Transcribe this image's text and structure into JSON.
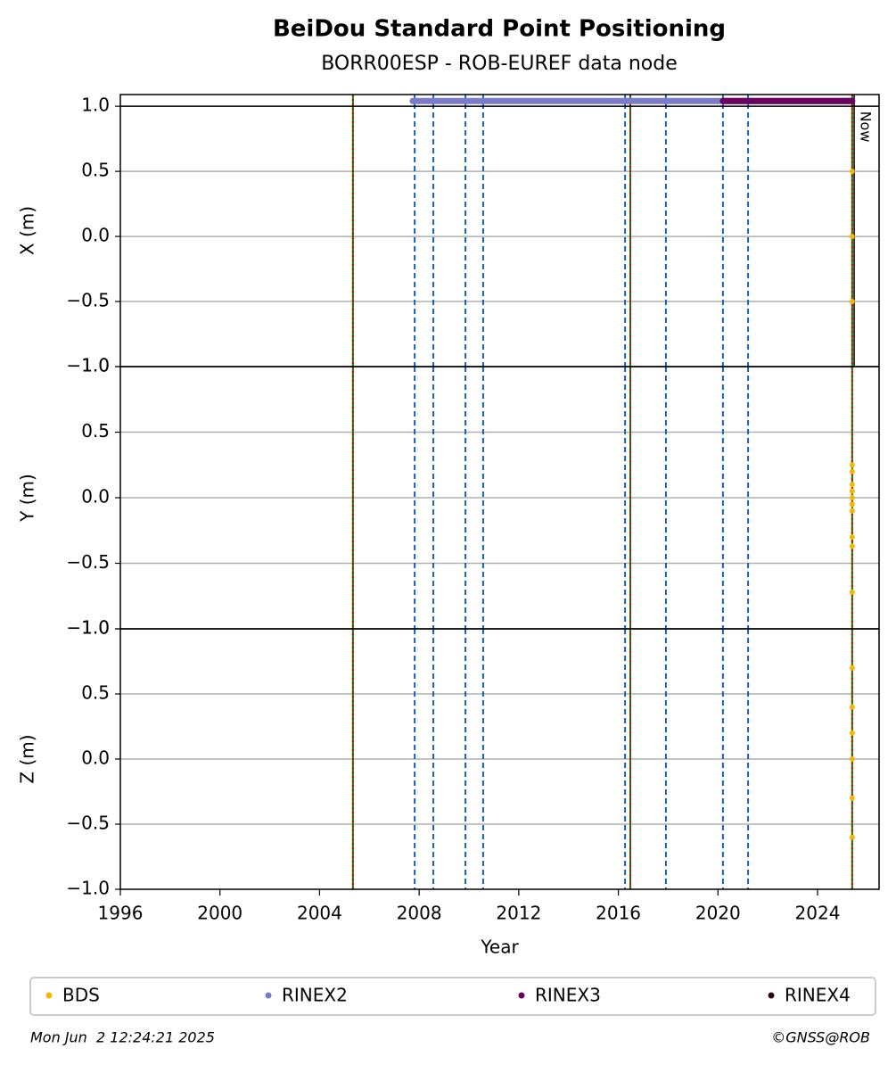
{
  "title": "BeiDou Standard Point Positioning",
  "subtitle": "BORR00ESP - ROB-EUREF data node",
  "chart_data": [
    {
      "type": "scatter",
      "ylabel": "X (m)",
      "xlim": [
        1996,
        2026.47
      ],
      "ylim": [
        -1,
        1.09
      ],
      "yticks": [
        {
          "value": -1,
          "label": "−1.0"
        },
        {
          "value": -0.5,
          "label": "−0.5"
        },
        {
          "value": 0,
          "label": "0.0"
        },
        {
          "value": 0.5,
          "label": "0.5"
        },
        {
          "value": 1,
          "label": "1.0"
        }
      ],
      "grid": true,
      "series": [
        {
          "name": "RINEX2",
          "color": "#7b7bc8",
          "line": true,
          "x": [
            2007.74,
            2025.39
          ],
          "values": [
            1.04,
            1.04
          ]
        },
        {
          "name": "RINEX3",
          "color": "#6a0060",
          "line": true,
          "x": [
            2020.2,
            2025.39
          ],
          "values": [
            1.04,
            1.04
          ]
        },
        {
          "name": "BDS",
          "color": "#f5b800",
          "x": [
            2025.39,
            2025.39,
            2025.39
          ],
          "values": [
            0.5,
            0,
            -0.5
          ]
        }
      ],
      "now": {
        "x": 2025.47,
        "label": "Now"
      }
    },
    {
      "type": "scatter",
      "ylabel": "Y (m)",
      "xlim": [
        1996,
        2026.47
      ],
      "ylim": [
        -1,
        1
      ],
      "yticks": [
        {
          "value": -1,
          "label": "−1.0"
        },
        {
          "value": -0.5,
          "label": "−0.5"
        },
        {
          "value": 0,
          "label": "0.0"
        },
        {
          "value": 0.5,
          "label": "0.5"
        },
        {
          "value": 1,
          "label": "1.0"
        }
      ],
      "grid": true,
      "series": [
        {
          "name": "BDS",
          "color": "#f5b800",
          "x": [
            2025.39,
            2025.39,
            2025.39,
            2025.39,
            2025.39,
            2025.39,
            2025.39,
            2025.39,
            2025.39,
            2025.39
          ],
          "values": [
            0.25,
            0.2,
            0.1,
            0.05,
            0,
            -0.05,
            -0.1,
            -0.3,
            -0.37,
            -0.72
          ]
        }
      ]
    },
    {
      "type": "scatter",
      "ylabel": "Z (m)",
      "xlabel": "Year",
      "xlim": [
        1996,
        2026.47
      ],
      "ylim": [
        -1,
        1
      ],
      "yticks": [
        {
          "value": -1,
          "label": "−1.0"
        },
        {
          "value": -0.5,
          "label": "−0.5"
        },
        {
          "value": 0,
          "label": "0.0"
        },
        {
          "value": 0.5,
          "label": "0.5"
        },
        {
          "value": 1,
          "label": "1.0"
        }
      ],
      "xticks": [
        1996,
        2000,
        2004,
        2008,
        2012,
        2016,
        2020,
        2024
      ],
      "grid": true,
      "series": [
        {
          "name": "BDS",
          "color": "#f5b800",
          "x": [
            2025.39,
            2025.39,
            2025.39,
            2025.39,
            2025.39,
            2025.39
          ],
          "values": [
            0.7,
            0.4,
            0.2,
            0,
            -0.3,
            -0.6
          ]
        }
      ]
    }
  ],
  "vlines": [
    {
      "x": 2005.34,
      "color": "#008000",
      "dash": "solid"
    },
    {
      "x": 2005.34,
      "color": "#e00000",
      "dash": "dotted"
    },
    {
      "x": 2016.48,
      "color": "#008000",
      "dash": "solid"
    },
    {
      "x": 2016.48,
      "color": "#e00000",
      "dash": "dotted"
    },
    {
      "x": 2025.39,
      "color": "#008000",
      "dash": "solid"
    },
    {
      "x": 2025.39,
      "color": "#e00000",
      "dash": "dotted"
    },
    {
      "x": 2007.82,
      "color": "#1560bd",
      "dash": "dashed"
    },
    {
      "x": 2008.57,
      "color": "#1560bd",
      "dash": "dashed"
    },
    {
      "x": 2009.86,
      "color": "#1560bd",
      "dash": "dashed"
    },
    {
      "x": 2010.57,
      "color": "#1560bd",
      "dash": "dashed"
    },
    {
      "x": 2016.27,
      "color": "#1560bd",
      "dash": "dashed"
    },
    {
      "x": 2017.91,
      "color": "#1560bd",
      "dash": "dashed"
    },
    {
      "x": 2020.2,
      "color": "#1560bd",
      "dash": "dashed"
    },
    {
      "x": 2021.21,
      "color": "#1560bd",
      "dash": "dashed"
    }
  ],
  "legend": [
    {
      "name": "BDS",
      "color": "#f5b800"
    },
    {
      "name": "RINEX2",
      "color": "#7b7bc8"
    },
    {
      "name": "RINEX3",
      "color": "#6a0060"
    },
    {
      "name": "RINEX4",
      "color": "#2b0a1e"
    }
  ],
  "footer": {
    "left": "Mon Jun  2 12:24:21 2025",
    "right": "©GNSS@ROB"
  }
}
